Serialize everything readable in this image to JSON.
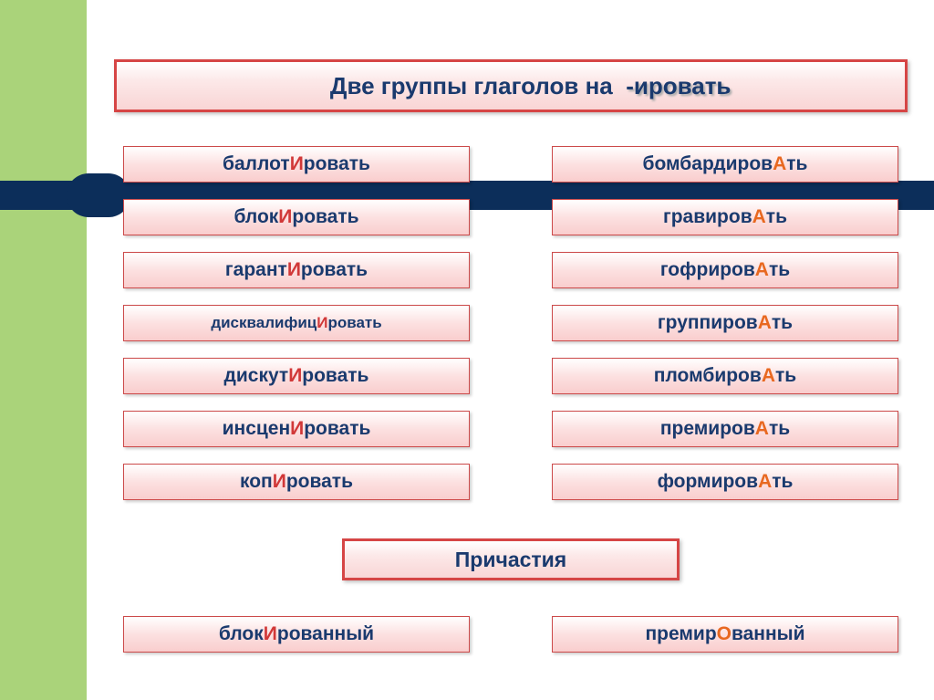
{
  "colors": {
    "sidebar": "#aad37a",
    "box_border": "#d64545",
    "box_gradient_top": "#ffffff",
    "box_gradient_bottom": "#f9cdcd",
    "text_main": "#1a3a6e",
    "highlight_i": "#d13838",
    "highlight_a": "#e86820",
    "divider": "#0c2e5a"
  },
  "title": {
    "prefix": "Две группы глаголов на  ",
    "suffix": "-ировать"
  },
  "left_column": [
    {
      "pre": "баллот",
      "hl": "И",
      "post": "ровать",
      "type": "i"
    },
    {
      "pre": "блок",
      "hl": "И",
      "post": "ровать",
      "type": "i"
    },
    {
      "pre": "гарант",
      "hl": "И",
      "post": "ровать",
      "type": "i"
    },
    {
      "pre": "дисквалифиц",
      "hl": "И",
      "post": "ровать",
      "type": "i",
      "small": true
    },
    {
      "pre": "дискут",
      "hl": "И",
      "post": "ровать",
      "type": "i"
    },
    {
      "pre": "инсцен",
      "hl": "И",
      "post": "ровать",
      "type": "i"
    },
    {
      "pre": "коп",
      "hl": "И",
      "post": "ровать",
      "type": "i"
    }
  ],
  "right_column": [
    {
      "pre": "бомбардиров",
      "hl": "А",
      "post": "ть",
      "type": "a"
    },
    {
      "pre": "гравиров",
      "hl": "А",
      "post": "ть",
      "type": "a"
    },
    {
      "pre": "гофриров",
      "hl": "А",
      "post": "ть",
      "type": "a"
    },
    {
      "pre": "группиров",
      "hl": "А",
      "post": "ть",
      "type": "a"
    },
    {
      "pre": "пломбиров",
      "hl": "А",
      "post": "ть",
      "type": "a"
    },
    {
      "pre": "премиров",
      "hl": "А",
      "post": "ть",
      "type": "a"
    },
    {
      "pre": "формиров",
      "hl": "А",
      "post": "ть",
      "type": "a"
    }
  ],
  "participle_title": "Причастия",
  "participles": {
    "left": {
      "pre": "блок",
      "hl": "И",
      "post": "рованный",
      "type": "i"
    },
    "right": {
      "pre": "премир",
      "hl": "О",
      "post": "ванный",
      "type": "o"
    }
  }
}
